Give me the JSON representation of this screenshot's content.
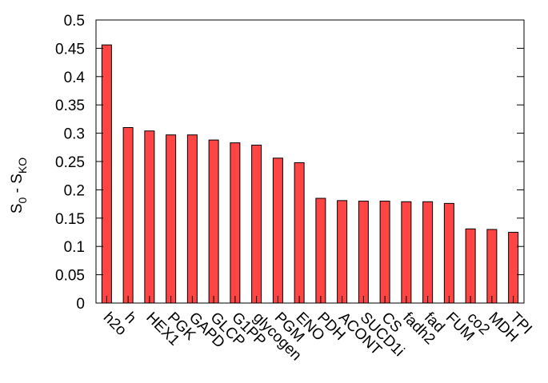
{
  "chart_data": {
    "type": "bar",
    "title": "",
    "xlabel": "",
    "ylabel": {
      "base1": "S",
      "sub1": "0",
      "sep": " - ",
      "base2": "S",
      "sub2": "KO"
    },
    "ylim": [
      0,
      0.5
    ],
    "yticks": [
      "0",
      "0.05",
      "0.1",
      "0.15",
      "0.2",
      "0.25",
      "0.3",
      "0.35",
      "0.4",
      "0.45",
      "0.5"
    ],
    "categories": [
      "h2o",
      "h",
      "HEX1",
      "PGK",
      "GAPD",
      "GLCP",
      "G1PP",
      "glycogen",
      "PGM",
      "ENO",
      "PDH",
      "ACONT",
      "SUCD1i",
      "CS",
      "fadh2",
      "fad",
      "FUM",
      "co2",
      "MDH",
      "TPI"
    ],
    "values": [
      0.456,
      0.31,
      0.304,
      0.297,
      0.297,
      0.288,
      0.283,
      0.279,
      0.256,
      0.248,
      0.185,
      0.181,
      0.18,
      0.18,
      0.179,
      0.179,
      0.176,
      0.131,
      0.13,
      0.125
    ],
    "bar_color": "#ff4444",
    "bar_edge_color": "#000000",
    "grid": false,
    "legend": "none"
  }
}
